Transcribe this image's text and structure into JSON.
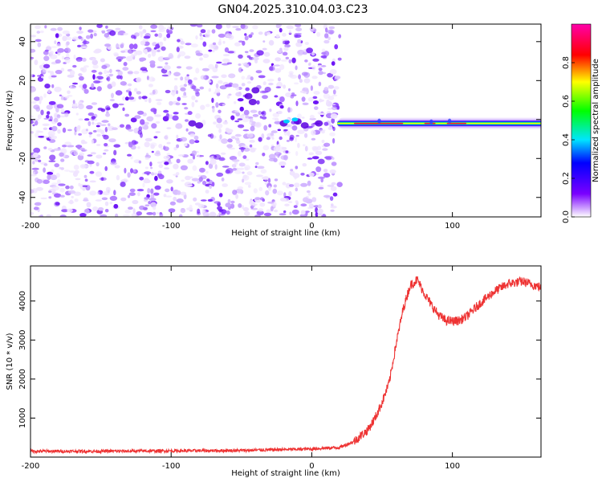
{
  "figure": {
    "title": "GN04.2025.310.04.03.C23"
  },
  "chart_data": [
    {
      "type": "heatmap",
      "xlabel": "Height of straight line (km)",
      "ylabel": "Frequency (Hz)",
      "xlim": [
        -200,
        163
      ],
      "ylim": [
        -50,
        49
      ],
      "xticks": [
        -200,
        -100,
        0,
        100
      ],
      "yticks": [
        -40,
        -20,
        0,
        20,
        40
      ],
      "noise_region_x": [
        -200,
        20
      ],
      "signal_band": {
        "x": [
          20,
          163
        ],
        "freq_hz": -2
      },
      "colorbar": {
        "label": "Normalized spectral amplitude",
        "range": [
          0.0,
          1.0
        ],
        "ticks": [
          "0.0",
          "0.2",
          "0.4",
          "0.6",
          "0.8"
        ]
      },
      "grid": false
    },
    {
      "type": "line",
      "xlabel": "Height of straight line (km)",
      "ylabel": "SNR (10 * v/v)",
      "xlim": [
        -200,
        163
      ],
      "ylim": [
        0,
        4900
      ],
      "xticks": [
        -200,
        -100,
        0,
        100
      ],
      "yticks": [
        1000,
        2000,
        3000,
        4000
      ],
      "series": [
        {
          "color": "#ee3333",
          "x": [
            -200,
            -150,
            -100,
            -50,
            0,
            20,
            30,
            40,
            45,
            50,
            55,
            60,
            65,
            70,
            75,
            80,
            85,
            90,
            95,
            100,
            105,
            110,
            120,
            130,
            140,
            150,
            163
          ],
          "y": [
            150,
            150,
            160,
            170,
            210,
            250,
            400,
            700,
            1000,
            1400,
            1900,
            2900,
            3800,
            4400,
            4550,
            4200,
            3900,
            3650,
            3500,
            3480,
            3500,
            3600,
            3950,
            4250,
            4450,
            4500,
            4350
          ]
        }
      ],
      "grid": false
    }
  ]
}
